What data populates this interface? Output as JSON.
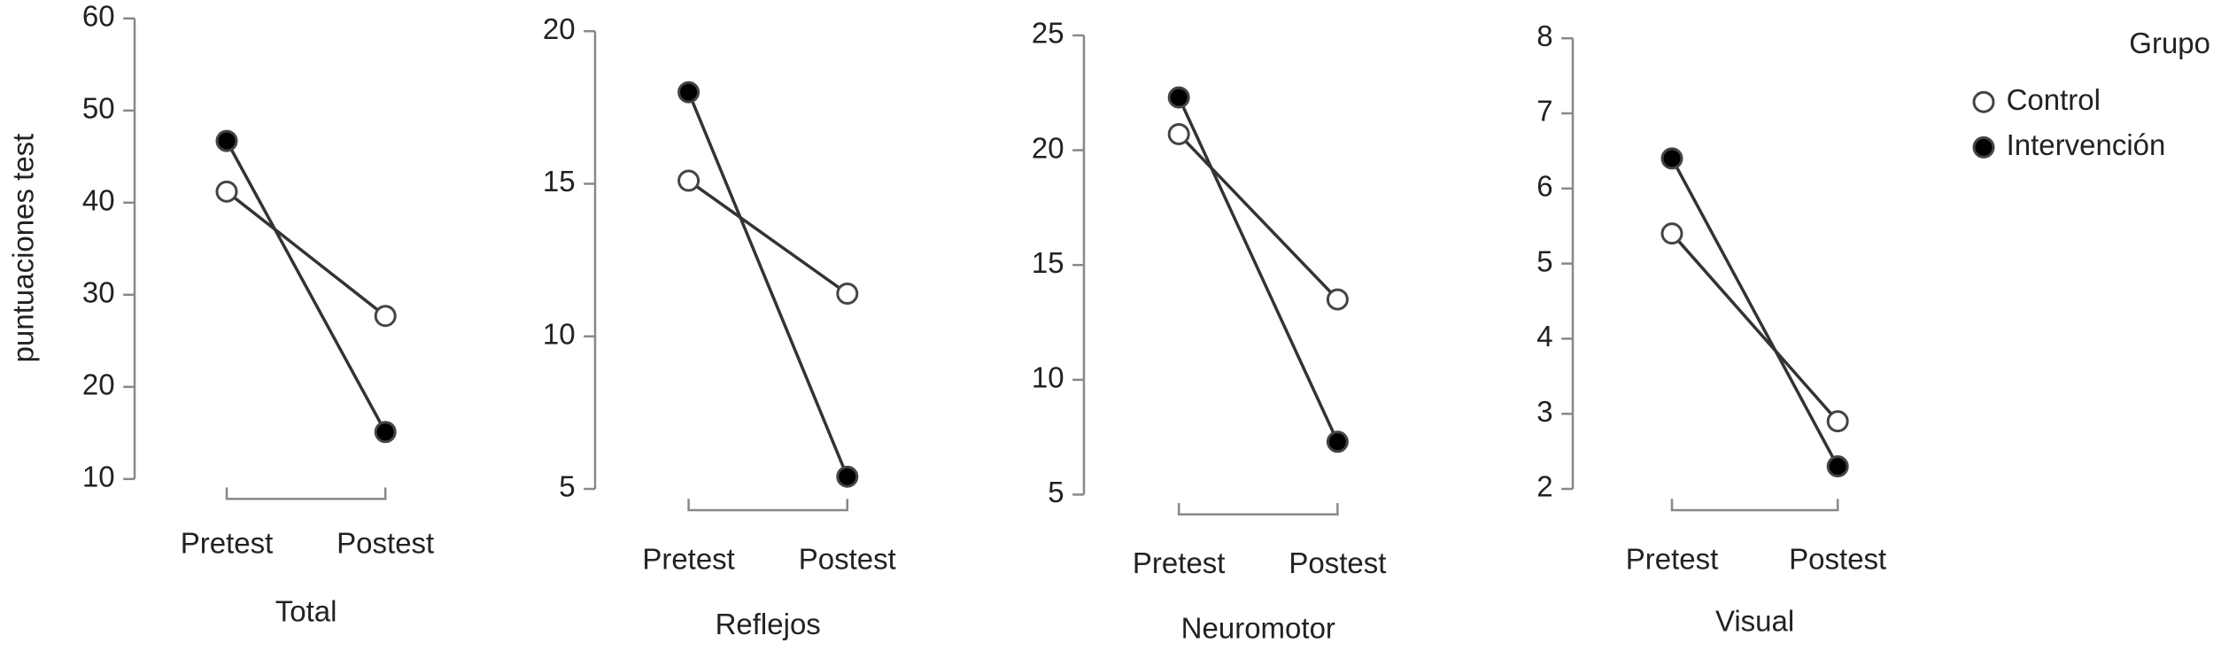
{
  "chart_data": [
    {
      "type": "line",
      "ylabel": "puntuaciones test",
      "xlabel": "Total",
      "categories": [
        "Pretest",
        "Postest"
      ],
      "series": [
        {
          "color": "#ffffff",
          "values": [
            41.2,
            27.7
          ]
        },
        {
          "color": "#000000",
          "values": [
            46.7,
            15.1
          ]
        }
      ],
      "ylim": [
        10,
        60
      ],
      "yticks": [
        10,
        20,
        30,
        40,
        50,
        60
      ]
    },
    {
      "type": "line",
      "xlabel": "Reflejos",
      "categories": [
        "Pretest",
        "Postest"
      ],
      "series": [
        {
          "color": "#ffffff",
          "values": [
            15.1,
            11.4
          ]
        },
        {
          "color": "#000000",
          "values": [
            18.0,
            5.4
          ]
        }
      ],
      "ylim": [
        5,
        20
      ],
      "yticks": [
        5,
        10,
        15,
        20
      ]
    },
    {
      "type": "line",
      "xlabel": "Neuromotor",
      "categories": [
        "Pretest",
        "Postest"
      ],
      "series": [
        {
          "color": "#ffffff",
          "values": [
            20.7,
            13.5
          ]
        },
        {
          "color": "#000000",
          "values": [
            22.3,
            7.3
          ]
        }
      ],
      "ylim": [
        5,
        25
      ],
      "yticks": [
        5,
        10,
        15,
        20,
        25
      ]
    },
    {
      "type": "line",
      "xlabel": "Visual",
      "categories": [
        "Pretest",
        "Postest"
      ],
      "legend_title": "Grupo",
      "series": [
        {
          "name": "Control",
          "color": "#ffffff",
          "values": [
            5.4,
            2.9
          ]
        },
        {
          "name": "Intervención",
          "color": "#000000",
          "values": [
            6.4,
            2.3
          ]
        }
      ],
      "ylim": [
        2,
        8
      ],
      "yticks": [
        2,
        3,
        4,
        5,
        6,
        7,
        8
      ]
    }
  ]
}
